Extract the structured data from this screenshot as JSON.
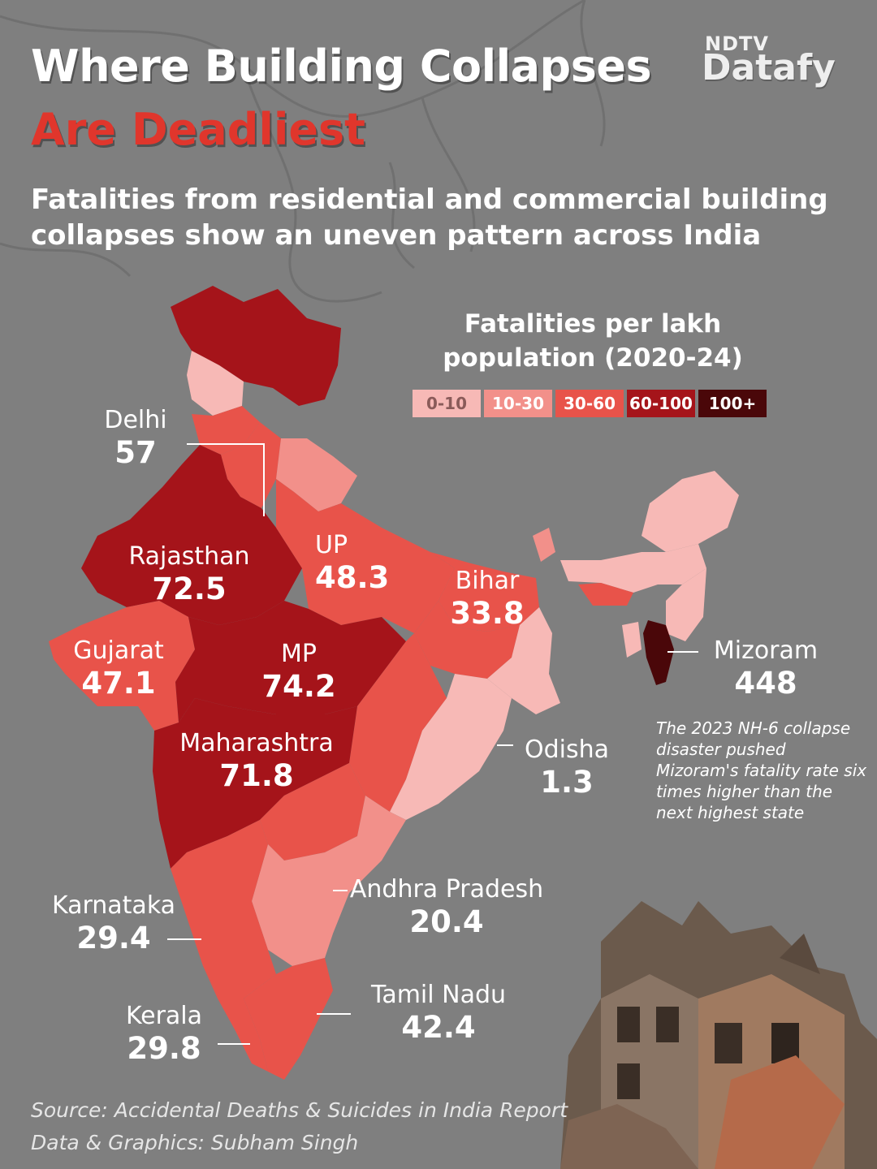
{
  "header": {
    "title_line1": "Where Building Collapses",
    "title_line2": "Are Deadliest",
    "subtitle": "Fatalities from residential and commercial building collapses show an uneven pattern across India"
  },
  "logo": {
    "top": "NDTV",
    "main": "Datafy"
  },
  "legend": {
    "title": "Fatalities per lakh population (2020-24)",
    "bins": [
      {
        "label": "0-10",
        "color": "#f7b9b6"
      },
      {
        "label": "10-30",
        "color": "#f2908a"
      },
      {
        "label": "30-60",
        "color": "#e8534a"
      },
      {
        "label": "60-100",
        "color": "#a5141a"
      },
      {
        "label": "100+",
        "color": "#4a0709"
      }
    ]
  },
  "states": {
    "delhi": {
      "name": "Delhi",
      "value": "57"
    },
    "rajasthan": {
      "name": "Rajasthan",
      "value": "72.5"
    },
    "up": {
      "name": "UP",
      "value": "48.3"
    },
    "bihar": {
      "name": "Bihar",
      "value": "33.8"
    },
    "gujarat": {
      "name": "Gujarat",
      "value": "47.1"
    },
    "mp": {
      "name": "MP",
      "value": "74.2"
    },
    "mizoram": {
      "name": "Mizoram",
      "value": "448"
    },
    "maharashtra": {
      "name": "Maharashtra",
      "value": "71.8"
    },
    "odisha": {
      "name": "Odisha",
      "value": "1.3"
    },
    "andhra": {
      "name": "Andhra Pradesh",
      "value": "20.4"
    },
    "karnataka": {
      "name": "Karnataka",
      "value": "29.4"
    },
    "tamilnadu": {
      "name": "Tamil Nadu",
      "value": "42.4"
    },
    "kerala": {
      "name": "Kerala",
      "value": "29.8"
    }
  },
  "annotation": "The 2023 NH-6 collapse disaster pushed Mizoram's fatality rate six times higher than the next highest state",
  "footer": {
    "source": "Source: Accidental Deaths & Suicides in India Report",
    "credit": "Data & Graphics: Subham Singh"
  }
}
